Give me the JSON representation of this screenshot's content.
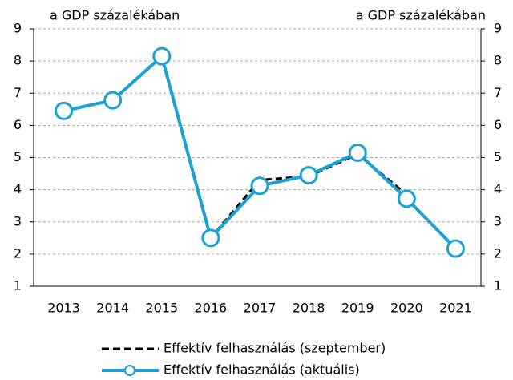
{
  "chart_data": {
    "type": "line",
    "y_label": "a GDP százalékában",
    "y2_label": "a GDP százalékában",
    "categories": [
      "2013",
      "2014",
      "2015",
      "2016",
      "2017",
      "2018",
      "2019",
      "2020",
      "2021"
    ],
    "series": [
      {
        "name": "Effektív felhasználás (szeptember)",
        "color": "#000000",
        "dashed": true,
        "marker": false,
        "values": [
          6.45,
          6.78,
          8.15,
          2.5,
          4.3,
          4.42,
          5.1,
          3.85,
          null
        ]
      },
      {
        "name": "Effektív felhasználás (aktuális)",
        "color": "#1ba1d6",
        "dashed": false,
        "marker": true,
        "values": [
          6.45,
          6.78,
          8.15,
          2.5,
          4.12,
          4.45,
          5.15,
          3.72,
          2.17
        ]
      }
    ],
    "ylim": [
      1,
      9
    ],
    "yticks": [
      1,
      2,
      3,
      4,
      5,
      6,
      7,
      8,
      9
    ],
    "y2lim": [
      1,
      9
    ],
    "y2ticks": [
      1,
      2,
      3,
      4,
      5,
      6,
      7,
      8,
      9
    ],
    "grid": true,
    "legend": "bottom"
  }
}
